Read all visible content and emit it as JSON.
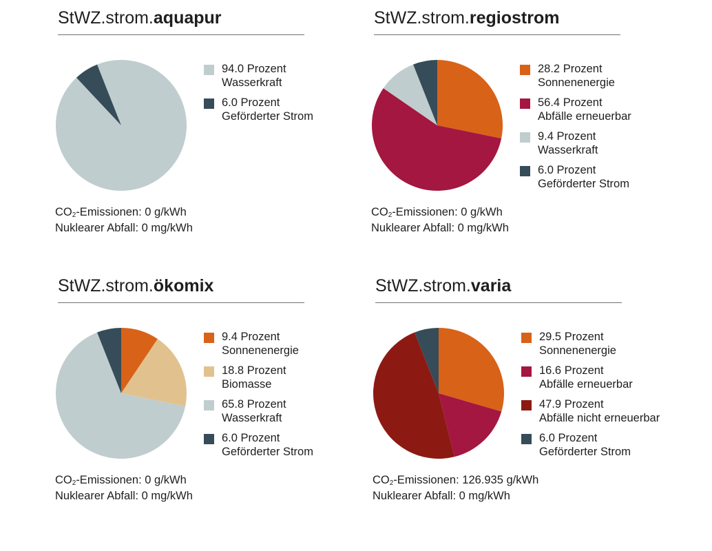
{
  "charts": [
    {
      "title_prefix": "StWZ.strom.",
      "title_bold": "aquapur",
      "legend": [
        {
          "line1": "94.0 Prozent",
          "line2": "Wasserkraft"
        },
        {
          "line1": "6.0 Prozent",
          "line2": "Geförderter Strom"
        }
      ],
      "co2": {
        "prefix": "CO",
        "sub": "2",
        "rest": "-Emissionen: 0 g/kWh"
      },
      "nuclear": "Nuklearer Abfall: 0 mg/kWh"
    },
    {
      "title_prefix": "StWZ.strom.",
      "title_bold": "regiostrom",
      "legend": [
        {
          "line1": "28.2 Prozent",
          "line2": "Sonnenenergie"
        },
        {
          "line1": "56.4 Prozent",
          "line2": "Abfälle erneuerbar"
        },
        {
          "line1": "9.4 Prozent",
          "line2": "Wasserkraft"
        },
        {
          "line1": "6.0 Prozent",
          "line2": "Geförderter Strom"
        }
      ],
      "co2": {
        "prefix": "CO",
        "sub": "2",
        "rest": "-Emissionen: 0 g/kWh"
      },
      "nuclear": "Nuklearer Abfall: 0 mg/kWh"
    },
    {
      "title_prefix": "StWZ.strom.",
      "title_bold": "ökomix",
      "legend": [
        {
          "line1": "9.4 Prozent",
          "line2": "Sonnenenergie"
        },
        {
          "line1": "18.8 Prozent",
          "line2": "Biomasse"
        },
        {
          "line1": "65.8 Prozent",
          "line2": "Wasserkraft"
        },
        {
          "line1": "6.0 Prozent",
          "line2": "Geförderter Strom"
        }
      ],
      "co2": {
        "prefix": "CO",
        "sub": "2",
        "rest": "-Emissionen: 0 g/kWh"
      },
      "nuclear": "Nuklearer Abfall: 0 mg/kWh"
    },
    {
      "title_prefix": "StWZ.strom.",
      "title_bold": "varia",
      "legend": [
        {
          "line1": "29.5 Prozent",
          "line2": "Sonnenenergie"
        },
        {
          "line1": "16.6 Prozent",
          "line2": "Abfälle erneuerbar"
        },
        {
          "line1": "47.9 Prozent",
          "line2": "Abfälle nicht erneuerbar"
        },
        {
          "line1": "6.0 Prozent",
          "line2": "Geförderter Strom"
        }
      ],
      "co2": {
        "prefix": "CO",
        "sub": "2",
        "rest": "-Emissionen: 126.935 g/kWh"
      },
      "nuclear": "Nuklearer Abfall: 0 mg/kWh"
    }
  ],
  "chart_data": [
    {
      "type": "pie",
      "title": "StWZ.strom.aquapur",
      "categories": [
        "Wasserkraft",
        "Geförderter Strom"
      ],
      "values": [
        94.0,
        6.0
      ],
      "colors": [
        "#c0cdcf",
        "#364c58"
      ],
      "start_angle_deg": -21.6
    },
    {
      "type": "pie",
      "title": "StWZ.strom.regiostrom",
      "categories": [
        "Sonnenenergie",
        "Abfälle erneuerbar",
        "Wasserkraft",
        "Geförderter Strom"
      ],
      "values": [
        28.2,
        56.4,
        9.4,
        6.0
      ],
      "colors": [
        "#d86218",
        "#a41740",
        "#c0cdcf",
        "#364c58"
      ],
      "start_angle_deg": 0
    },
    {
      "type": "pie",
      "title": "StWZ.strom.ökomix",
      "categories": [
        "Sonnenenergie",
        "Biomasse",
        "Wasserkraft",
        "Geförderter Strom"
      ],
      "values": [
        9.4,
        18.8,
        65.8,
        6.0
      ],
      "colors": [
        "#d86218",
        "#e1c28e",
        "#c0cdcf",
        "#364c58"
      ],
      "start_angle_deg": 0
    },
    {
      "type": "pie",
      "title": "StWZ.strom.varia",
      "categories": [
        "Sonnenenergie",
        "Abfälle erneuerbar",
        "Abfälle nicht erneuerbar",
        "Geförderter Strom"
      ],
      "values": [
        29.5,
        16.6,
        47.9,
        6.0
      ],
      "colors": [
        "#d86218",
        "#a41740",
        "#8c1a13",
        "#364c58"
      ],
      "start_angle_deg": 0
    }
  ]
}
